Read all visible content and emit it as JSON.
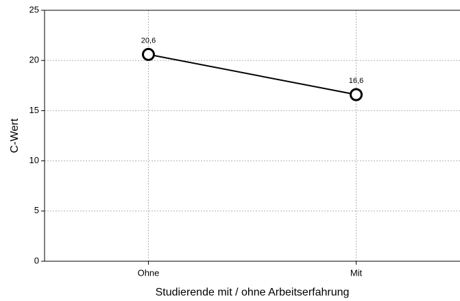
{
  "chart_data": {
    "type": "line",
    "categories": [
      "Ohne",
      "Mit"
    ],
    "series": [
      {
        "name": "C-Wert",
        "color": "#000000",
        "values": [
          20.6,
          16.6
        ],
        "value_labels": [
          "20,6",
          "16,6"
        ]
      }
    ],
    "ylabel": "C-Wert",
    "xlabel": "Studierende mit / ohne Arbeitserfahrung",
    "ylim": [
      0,
      25
    ],
    "yticks": [
      0,
      5,
      10,
      15,
      20,
      25
    ],
    "grid": true
  }
}
